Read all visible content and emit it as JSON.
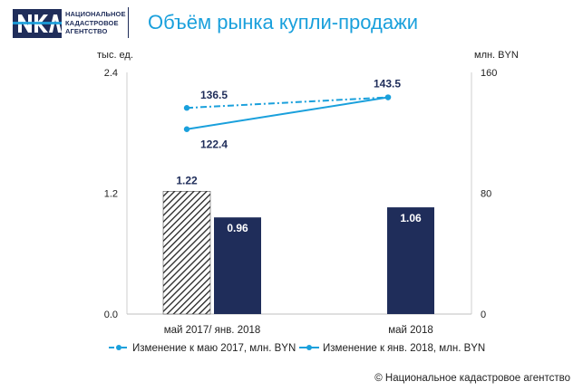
{
  "logo": {
    "lines": [
      "НАЦИОНАЛЬНОЕ",
      "КАДАСТРОВОЕ",
      "АГЕНТСТВО"
    ],
    "brand_color": "#1f2d5a"
  },
  "title": "Объём рынка купли-продажи",
  "chart_data": {
    "type": "bar",
    "categories": [
      "май 2017/ янв. 2018",
      "май 2018"
    ],
    "left_axis": {
      "unit": "тыс. ед.",
      "ylim": [
        0,
        2.4
      ],
      "ticks": [
        "0.0",
        "1.2",
        "2.4"
      ]
    },
    "right_axis": {
      "unit": "млн. BYN",
      "ylim": [
        0,
        160
      ],
      "ticks": [
        "0",
        "80",
        "160"
      ]
    },
    "bars": [
      {
        "category": "май 2017/ янв. 2018",
        "value": 1.22,
        "label": "1.22",
        "pattern": "hatched"
      },
      {
        "category": "май 2017/ янв. 2018",
        "value": 0.96,
        "label": "0.96",
        "pattern": "solid"
      },
      {
        "category": "май 2018",
        "value": 1.06,
        "label": "1.06",
        "pattern": "solid"
      }
    ],
    "series": [
      {
        "name": "Изменение к маю 2017, млн. BYN",
        "style": "dash-dot",
        "axis": "right",
        "points": [
          {
            "category": "май 2017/ янв. 2018",
            "value": 136.5,
            "label": "136.5"
          },
          {
            "category": "май 2018",
            "value": 143.5,
            "label": ""
          }
        ]
      },
      {
        "name": "Изменение к янв. 2018, млн. BYN",
        "style": "solid",
        "axis": "right",
        "points": [
          {
            "category": "май 2017/ янв. 2018",
            "value": 122.4,
            "label": "122.4"
          },
          {
            "category": "май 2018",
            "value": 143.5,
            "label": "143.5"
          }
        ]
      }
    ],
    "grid": false,
    "legend_position": "bottom",
    "colors": {
      "bar": "#1f2d5a",
      "line": "#1aa0dc",
      "text": "#1f2d5a"
    }
  },
  "footer": {
    "copyright": "© Национальное кадастровое агентство"
  }
}
